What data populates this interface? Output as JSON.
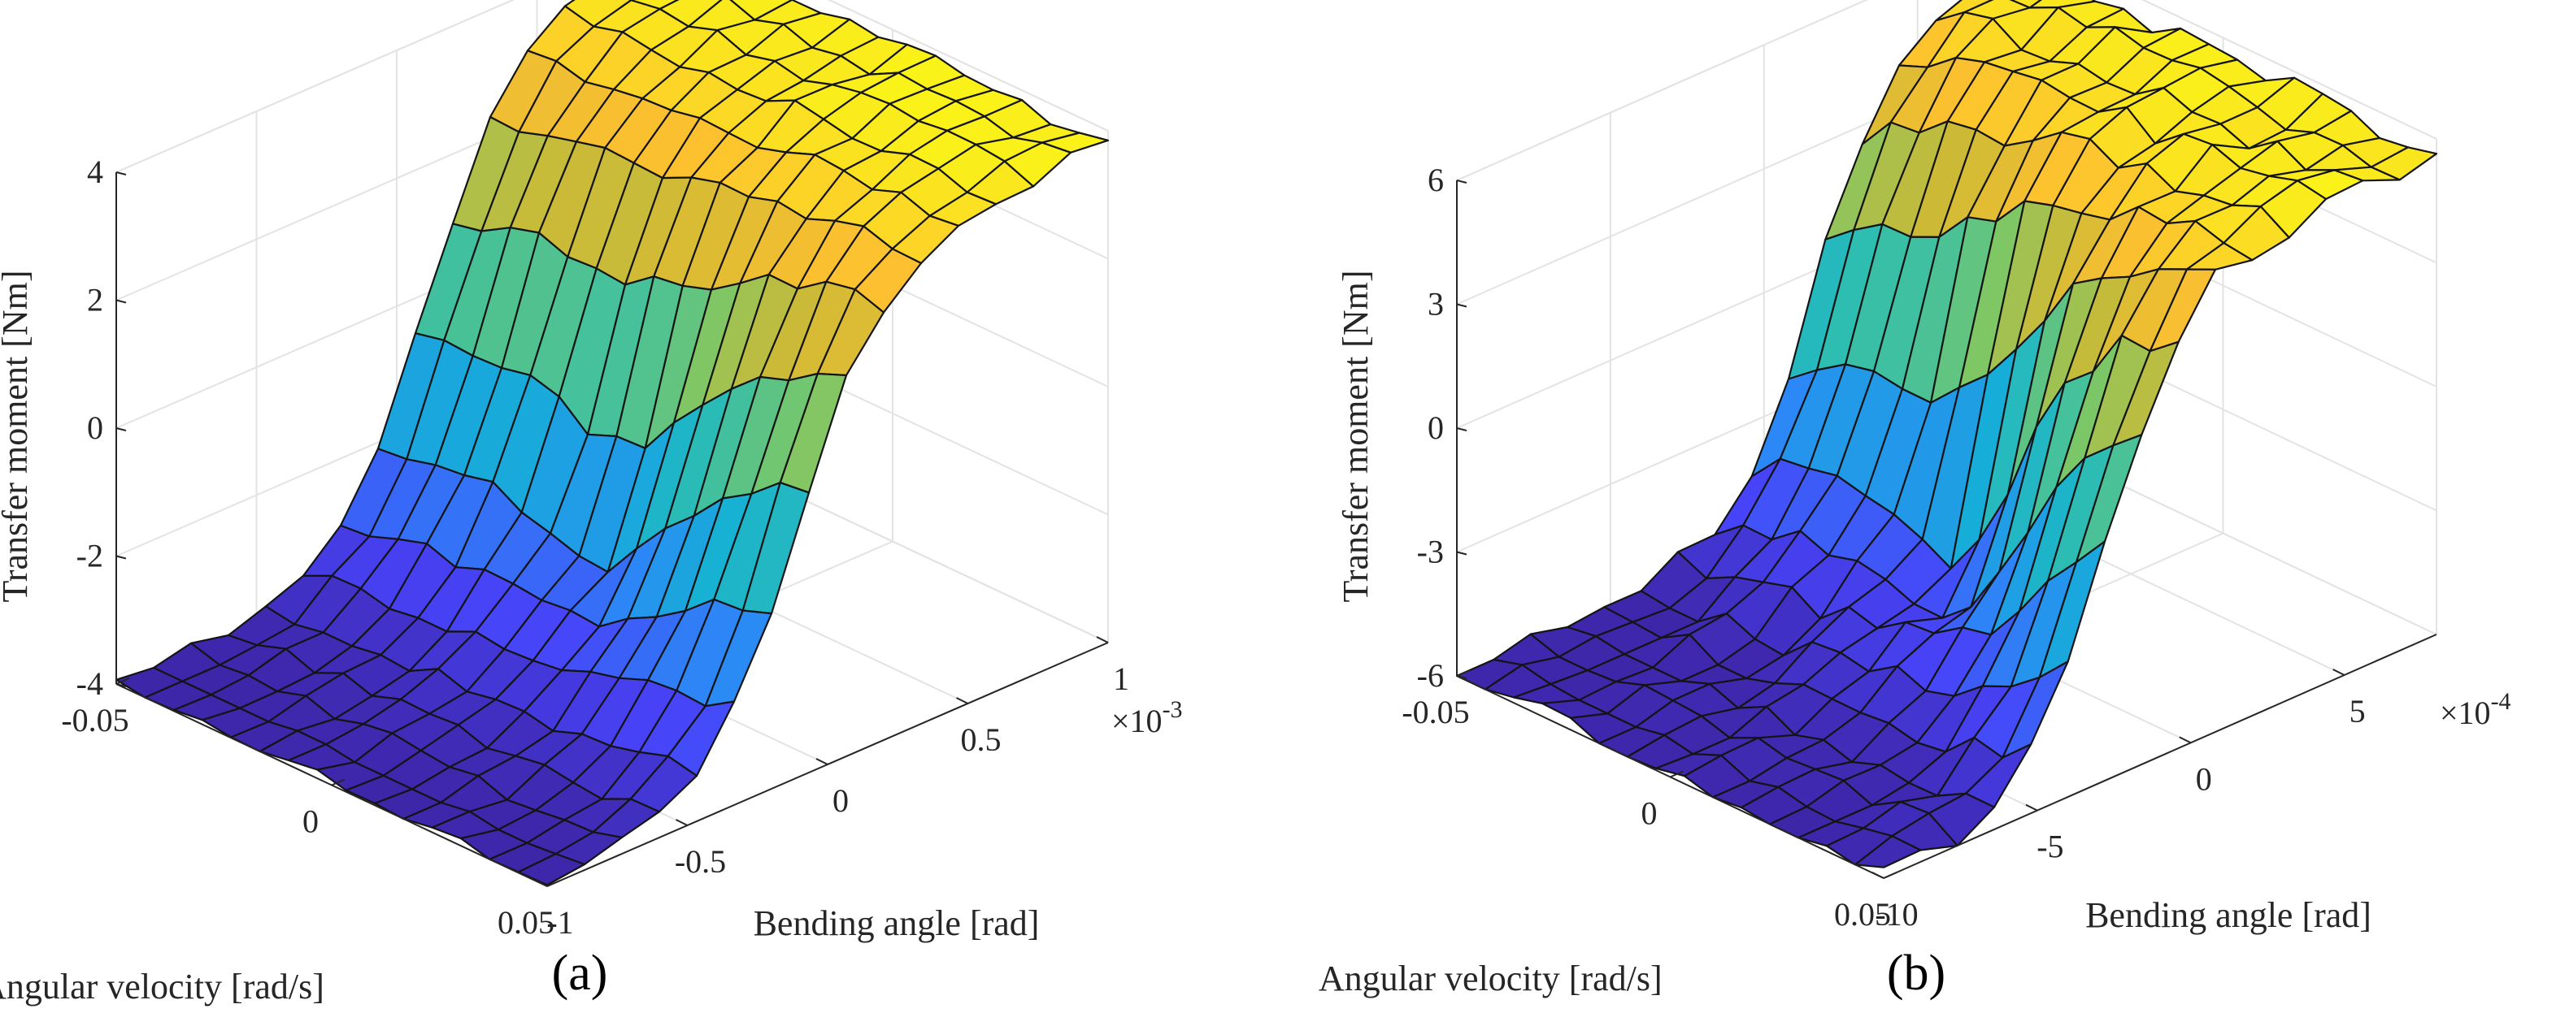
{
  "chart_data": [
    {
      "panel_label": "(a)",
      "type": "surface",
      "xlabel": "Angular velocity [rad/s]",
      "ylabel": "Bending angle [rad]",
      "zlabel": "Transfer moment [Nm]",
      "x_ticks": [
        "0.05",
        "0",
        "-0.05"
      ],
      "x_tick_values": [
        0.05,
        0,
        -0.05
      ],
      "y_ticks": [
        "-1",
        "-0.5",
        "0",
        "0.5",
        "1"
      ],
      "y_tick_values": [
        -1,
        -0.5,
        0,
        0.5,
        1
      ],
      "y_multiplier": "×10",
      "y_multiplier_exp": "-3",
      "z_ticks": [
        "-4",
        "-2",
        "0",
        "2",
        "4"
      ],
      "z_tick_values": [
        -4,
        -2,
        0,
        2,
        4
      ],
      "xlim": [
        -0.05,
        0.05
      ],
      "ylim": [
        -1,
        1
      ],
      "zlim": [
        -4,
        4
      ],
      "surface": {
        "z_min": -4.0,
        "z_max": 3.8,
        "offset": 0.0,
        "transition_width": 0.32,
        "velocity_coupling": 0.22,
        "notch_depth": 0.2,
        "noise": 0.2
      },
      "colormap": [
        "#3e26a8",
        "#4743f8",
        "#2c88f6",
        "#15b0d6",
        "#2fbeaf",
        "#7bc768",
        "#cdba36",
        "#fdc030",
        "#f9fb15"
      ]
    },
    {
      "panel_label": "(b)",
      "type": "surface",
      "xlabel": "Angular velocity [rad/s]",
      "ylabel": "Bending angle [rad]",
      "zlabel": "Transfer moment [Nm]",
      "x_ticks": [
        "0.05",
        "0",
        "-0.05"
      ],
      "x_tick_values": [
        0.05,
        0,
        -0.05
      ],
      "y_ticks": [
        "-10",
        "-5",
        "0",
        "5"
      ],
      "y_tick_values": [
        -10,
        -5,
        0,
        5
      ],
      "y_multiplier": "×10",
      "y_multiplier_exp": "-4",
      "z_ticks": [
        "-6",
        "-3",
        "0",
        "3",
        "6"
      ],
      "z_tick_values": [
        -6,
        -3,
        0,
        3,
        6
      ],
      "xlim": [
        -0.05,
        0.05
      ],
      "ylim": [
        -10,
        8
      ],
      "zlim": [
        -6,
        6
      ],
      "surface": {
        "z_min": -6.0,
        "z_max": 5.6,
        "offset": -0.5,
        "transition_width": 2.6,
        "velocity_coupling": 0.5,
        "notch_depth": 0.35,
        "noise": 0.3
      },
      "colormap": [
        "#3e26a8",
        "#4743f8",
        "#2c88f6",
        "#15b0d6",
        "#2fbeaf",
        "#7bc768",
        "#cdba36",
        "#fdc030",
        "#f9fb15"
      ]
    }
  ]
}
